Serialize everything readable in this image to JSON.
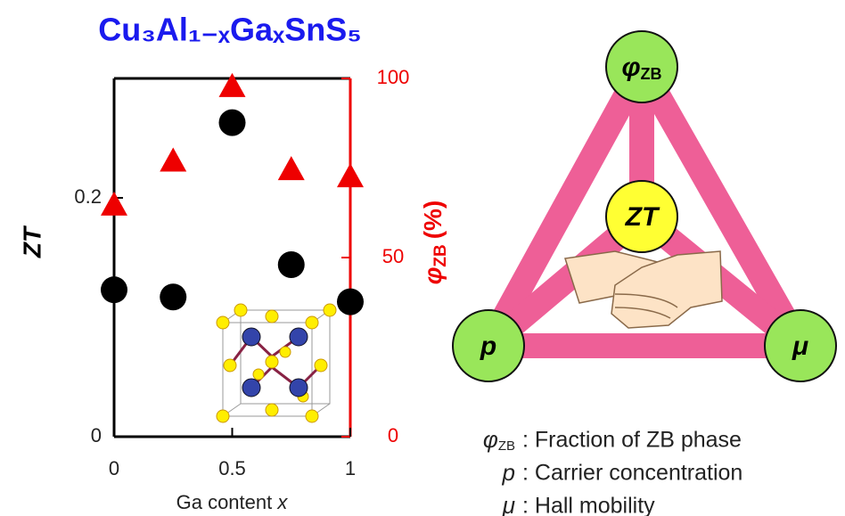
{
  "chart_data": {
    "type": "scatter",
    "title": "Cu₃Al₁₋ₓGaₓSnS₅",
    "xlabel": {
      "text": "Ga content",
      "var": "x"
    },
    "ylabel": "ZT",
    "y2label": {
      "symbol": "φ",
      "sub": "ZB",
      "unit": "(%)"
    },
    "x": [
      0,
      0.25,
      0.5,
      0.75,
      1
    ],
    "series": [
      {
        "name": "ZT",
        "color": "#000000",
        "marker": "circle",
        "axis": "y",
        "values": [
          0.123,
          0.117,
          0.263,
          0.144,
          0.113
        ]
      },
      {
        "name": "φZB",
        "color": "#ee0000",
        "marker": "triangle",
        "axis": "y2",
        "values": [
          64.7,
          77,
          97.8,
          74.6,
          72.6
        ]
      }
    ],
    "xlim": [
      0,
      1
    ],
    "xticks": [
      0,
      0.5,
      1
    ],
    "ylim": [
      0,
      0.3
    ],
    "yticks": [
      0,
      0.2
    ],
    "y2lim": [
      0,
      100
    ],
    "y2ticks": [
      0,
      50,
      100
    ]
  },
  "diagram": {
    "nodes": [
      {
        "symbol": "φ",
        "sub": "ZB"
      },
      {
        "symbol": "ZT",
        "sub": ""
      },
      {
        "symbol": "p",
        "sub": ""
      },
      {
        "symbol": "μ",
        "sub": ""
      }
    ],
    "legend": [
      {
        "symbol": "φ",
        "sub": "ZB",
        "text": ": Fraction of ZB phase"
      },
      {
        "symbol": "p",
        "sub": "",
        "text": ": Carrier concentration"
      },
      {
        "symbol": "μ",
        "sub": "",
        "text": ": Hall mobility"
      }
    ]
  }
}
